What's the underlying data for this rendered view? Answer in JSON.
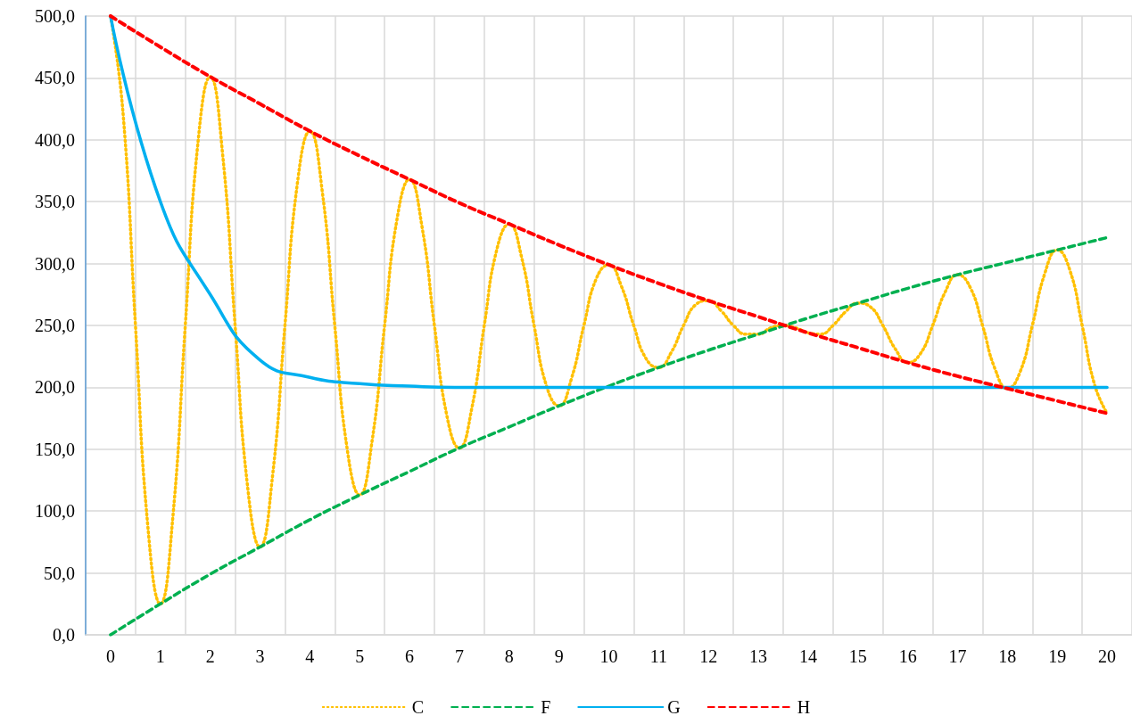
{
  "chart_data": {
    "type": "line",
    "xlim": [
      -0.5,
      20.5
    ],
    "xticks": [
      {
        "value": -0.5,
        "label": null
      },
      0,
      {
        "value": 0.5,
        "label": null
      },
      1,
      {
        "value": 1.5,
        "label": null
      },
      2,
      {
        "value": 2.5,
        "label": null
      },
      3,
      {
        "value": 3.5,
        "label": null
      },
      4,
      {
        "value": 4.5,
        "label": null
      },
      5,
      {
        "value": 5.5,
        "label": null
      },
      6,
      {
        "value": 6.5,
        "label": null
      },
      7,
      {
        "value": 7.5,
        "label": null
      },
      8,
      {
        "value": 8.5,
        "label": null
      },
      9,
      {
        "value": 9.5,
        "label": null
      },
      10,
      {
        "value": 10.5,
        "label": null
      },
      11,
      {
        "value": 11.5,
        "label": null
      },
      12,
      {
        "value": 12.5,
        "label": null
      },
      13,
      {
        "value": 13.5,
        "label": null
      },
      14,
      {
        "value": 14.5,
        "label": null
      },
      15,
      {
        "value": 15.5,
        "label": null
      },
      16,
      {
        "value": 16.5,
        "label": null
      },
      17,
      {
        "value": 17.5,
        "label": null
      },
      18,
      {
        "value": 18.5,
        "label": null
      },
      19,
      {
        "value": 19.5,
        "label": null
      },
      20,
      {
        "value": 20.5,
        "label": null
      }
    ],
    "ylim": [
      0,
      500
    ],
    "yticks": [
      {
        "value": 0,
        "label": "0,0"
      },
      {
        "value": 50,
        "label": "50,0"
      },
      {
        "value": 100,
        "label": "100,0"
      },
      {
        "value": 150,
        "label": "150,0"
      },
      {
        "value": 200,
        "label": "200,0"
      },
      {
        "value": 250,
        "label": "250,0"
      },
      {
        "value": 300,
        "label": "300,0"
      },
      {
        "value": 350,
        "label": "350,0"
      },
      {
        "value": 400,
        "label": "400,0"
      },
      {
        "value": 450,
        "label": "450,0"
      },
      {
        "value": 500,
        "label": "500,0"
      }
    ],
    "grid": true,
    "legend": "bottom",
    "marker": "none",
    "series": [
      {
        "name": "C",
        "color": "#ffc000",
        "line_style": "dotted",
        "x": [
          0,
          0.25,
          0.5,
          0.75,
          1,
          1.25,
          1.5,
          1.75,
          2,
          2.25,
          2.5,
          2.75,
          3,
          3.25,
          3.5,
          3.75,
          4,
          4.25,
          4.5,
          4.75,
          5,
          5.25,
          5.5,
          5.75,
          6,
          6.25,
          6.5,
          6.75,
          7,
          7.25,
          7.5,
          7.75,
          8,
          8.25,
          8.5,
          8.75,
          9,
          9.25,
          9.5,
          9.75,
          10,
          10.25,
          10.5,
          10.75,
          11,
          11.25,
          11.5,
          11.75,
          12,
          12.25,
          12.5,
          12.75,
          13,
          13.25,
          13.5,
          13.75,
          14,
          14.25,
          14.5,
          14.75,
          15,
          15.25,
          15.5,
          15.75,
          16,
          16.25,
          16.5,
          16.75,
          17,
          17.25,
          17.5,
          17.75,
          18,
          18.25,
          18.5,
          18.75,
          19,
          19.25,
          19.5,
          19.75,
          20
        ],
        "values": [
          500,
          422,
          250,
          87,
          25,
          95,
          250,
          396,
          451,
          388,
          250,
          120,
          71,
          128,
          250,
          365,
          407,
          358,
          250,
          150,
          113,
          157,
          250,
          336,
          368,
          330,
          250,
          177,
          151,
          183,
          250,
          311,
          332,
          305,
          250,
          201,
          185,
          207,
          250,
          288,
          299,
          282,
          250,
          223,
          216,
          228,
          250,
          267,
          270,
          262,
          250,
          243,
          243,
          248,
          250,
          248,
          244,
          243,
          250,
          261,
          268,
          265,
          250,
          231,
          220,
          227,
          250,
          277,
          291,
          281,
          250,
          215,
          199,
          212,
          250,
          292,
          311,
          295,
          250,
          202,
          179
        ]
      },
      {
        "name": "F",
        "color": "#00b050",
        "line_style": "dashed",
        "x": [
          0,
          1,
          2,
          3,
          4,
          5,
          6,
          7,
          8,
          9,
          10,
          11,
          12,
          13,
          14,
          15,
          16,
          17,
          18,
          19,
          20
        ],
        "values": [
          0,
          25,
          49,
          71,
          93,
          113,
          132,
          151,
          168,
          185,
          201,
          216,
          230,
          243,
          256,
          268,
          280,
          291,
          301,
          311,
          321
        ]
      },
      {
        "name": "G",
        "color": "#00b0f0",
        "line_style": "solid",
        "x": [
          0,
          1,
          2,
          3,
          4,
          5,
          6,
          7,
          8,
          9,
          10,
          11,
          12,
          13,
          14,
          15,
          16,
          17,
          18,
          19,
          20
        ],
        "values": [
          500,
          350,
          275,
          222,
          208,
          203,
          201,
          200,
          200,
          200,
          200,
          200,
          200,
          200,
          200,
          200,
          200,
          200,
          200,
          200,
          200
        ]
      },
      {
        "name": "H",
        "color": "#ff0000",
        "line_style": "dashed",
        "x": [
          0,
          1,
          2,
          3,
          4,
          5,
          6,
          7,
          8,
          9,
          10,
          11,
          12,
          13,
          14,
          15,
          16,
          17,
          18,
          19,
          20
        ],
        "values": [
          500,
          475,
          451,
          429,
          407,
          387,
          368,
          349,
          332,
          315,
          299,
          284,
          270,
          257,
          244,
          232,
          220,
          209,
          199,
          189,
          179
        ]
      }
    ]
  }
}
